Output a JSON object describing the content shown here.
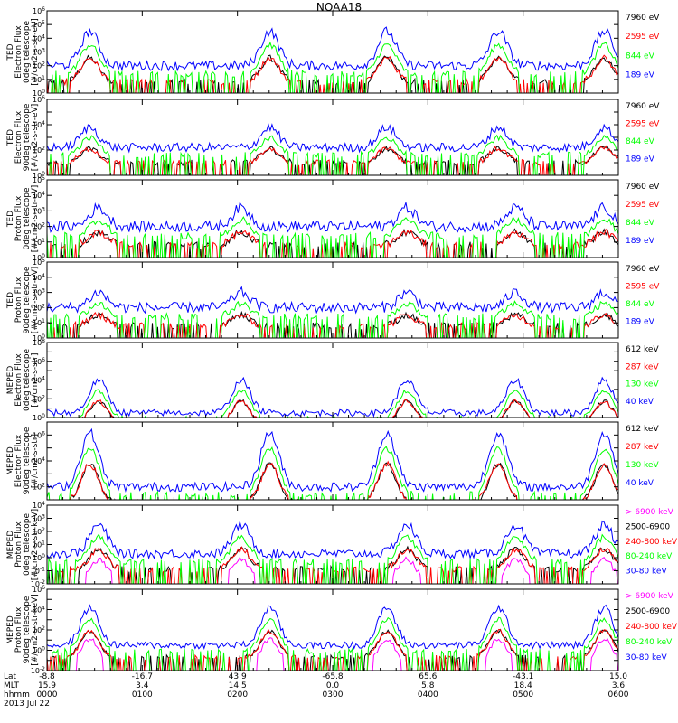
{
  "title": "NOAA18",
  "colors": {
    "black": "#000000",
    "red": "#ff0000",
    "green": "#00ff00",
    "blue": "#0000ff",
    "magenta": "#ff00ff"
  },
  "bottom_axis": {
    "rows": [
      {
        "label": "Lat",
        "values": [
          "-8.8",
          "-16.7",
          "43.9",
          "-65.8",
          "65.6",
          "-43.1",
          "15.0"
        ]
      },
      {
        "label": "MLT",
        "values": [
          "15.9",
          "3.4",
          "14.5",
          "0.0",
          "5.8",
          "18.4",
          "3.6"
        ]
      },
      {
        "label": "hhmm",
        "values": [
          "0000",
          "0100",
          "0200",
          "0300",
          "0400",
          "0500",
          "0600"
        ]
      }
    ],
    "date": "2013 Jul 22"
  },
  "chart_data": [
    {
      "type": "line",
      "instrument": "TED",
      "ylabel": [
        "TED",
        "Electron Flux",
        "0deg telescope",
        "[#/cm2-s-str-eV]"
      ],
      "y_scale": "log",
      "ylim": [
        1,
        1000000
      ],
      "ytick_labels": [
        "10^0",
        "10^1",
        "10^2",
        "10^3",
        "10^4",
        "10^5",
        "10^6"
      ],
      "series": [
        {
          "name": "7960 eV",
          "color": "#000000"
        },
        {
          "name": "2595 eV",
          "color": "#ff0000"
        },
        {
          "name": "844 eV",
          "color": "#00ff00"
        },
        {
          "name": "189 eV",
          "color": "#0000ff"
        }
      ],
      "legend": [
        {
          "text": "7960 eV",
          "color": "#000000"
        },
        {
          "text": "2595 eV",
          "color": "#ff0000"
        },
        {
          "text": "844 eV",
          "color": "#00ff00"
        },
        {
          "text": "189 eV",
          "color": "#0000ff"
        }
      ],
      "peaks": [
        0.075,
        0.39,
        0.595,
        0.79,
        0.975
      ],
      "base_blue": 2.0,
      "peak_blue": 4.5
    },
    {
      "type": "line",
      "instrument": "TED",
      "ylabel": [
        "TED",
        "Electron Flux",
        "90deg telescope",
        "[#/cm2-s-str-eV]"
      ],
      "y_scale": "log",
      "ylim": [
        1,
        1000000
      ],
      "ytick_labels": [
        "10^0",
        "",
        "10^2",
        "",
        "10^4",
        "",
        "10^6"
      ],
      "series": [
        {
          "name": "7960 eV",
          "color": "#000000"
        },
        {
          "name": "2595 eV",
          "color": "#ff0000"
        },
        {
          "name": "844 eV",
          "color": "#00ff00"
        },
        {
          "name": "189 eV",
          "color": "#0000ff"
        }
      ],
      "legend": [
        {
          "text": "7960 eV",
          "color": "#000000"
        },
        {
          "text": "2595 eV",
          "color": "#ff0000"
        },
        {
          "text": "844 eV",
          "color": "#00ff00"
        },
        {
          "text": "189 eV",
          "color": "#0000ff"
        }
      ],
      "peaks": [
        0.075,
        0.39,
        0.595,
        0.79,
        0.975
      ],
      "base_blue": 2.2,
      "peak_blue": 3.8
    },
    {
      "type": "line",
      "instrument": "TED",
      "ylabel": [
        "TED",
        "Proton Flux",
        "0deg telescope",
        "[#/cm2-s-str-eV]"
      ],
      "y_scale": "log",
      "ylim": [
        1,
        100000
      ],
      "ytick_labels": [
        "10^0",
        "10^1",
        "10^2",
        "10^3",
        "10^4",
        "10^5"
      ],
      "series": [
        {
          "name": "7960 eV",
          "color": "#000000"
        },
        {
          "name": "2595 eV",
          "color": "#ff0000"
        },
        {
          "name": "844 eV",
          "color": "#00ff00"
        },
        {
          "name": "189 eV",
          "color": "#0000ff"
        }
      ],
      "legend": [
        {
          "text": "7960 eV",
          "color": "#000000"
        },
        {
          "text": "2595 eV",
          "color": "#ff0000"
        },
        {
          "text": "844 eV",
          "color": "#00ff00"
        },
        {
          "text": "189 eV",
          "color": "#0000ff"
        }
      ],
      "peaks": [
        0.09,
        0.34,
        0.63,
        0.82,
        0.975
      ],
      "base_blue": 2.0,
      "peak_blue": 3.2
    },
    {
      "type": "line",
      "instrument": "TED",
      "ylabel": [
        "TED",
        "Proton Flux",
        "90deg telescope",
        "[#/cm2-s-str-eV]"
      ],
      "y_scale": "log",
      "ylim": [
        1,
        100000
      ],
      "ytick_labels": [
        "10^0",
        "10^1",
        "10^2",
        "10^3",
        "10^4",
        "10^5"
      ],
      "series": [
        {
          "name": "7960 eV",
          "color": "#000000"
        },
        {
          "name": "2595 eV",
          "color": "#ff0000"
        },
        {
          "name": "844 eV",
          "color": "#00ff00"
        },
        {
          "name": "189 eV",
          "color": "#0000ff"
        }
      ],
      "legend": [
        {
          "text": "7960 eV",
          "color": "#000000"
        },
        {
          "text": "2595 eV",
          "color": "#ff0000"
        },
        {
          "text": "844 eV",
          "color": "#00ff00"
        },
        {
          "text": "189 eV",
          "color": "#0000ff"
        }
      ],
      "peaks": [
        0.09,
        0.34,
        0.63,
        0.82,
        0.975
      ],
      "base_blue": 2.0,
      "peak_blue": 3.0
    },
    {
      "type": "line",
      "instrument": "MEPED",
      "ylabel": [
        "MEPED",
        "Electron Flux",
        "0deg telescope",
        "[#/cm2-s-str]"
      ],
      "y_scale": "log",
      "ylim": [
        1,
        100000000
      ],
      "ytick_labels": [
        "10^0",
        "",
        "10^2",
        "",
        "10^4",
        "",
        "10^6",
        "",
        "10^8"
      ],
      "series": [
        {
          "name": "612 keV",
          "color": "#000000"
        },
        {
          "name": "287 keV",
          "color": "#ff0000"
        },
        {
          "name": "130 keV",
          "color": "#00ff00"
        },
        {
          "name": "40 keV",
          "color": "#0000ff"
        }
      ],
      "legend": [
        {
          "text": "612 keV",
          "color": "#000000"
        },
        {
          "text": "287 keV",
          "color": "#ff0000"
        },
        {
          "text": "130 keV",
          "color": "#00ff00"
        },
        {
          "text": "40 keV",
          "color": "#0000ff"
        }
      ],
      "peaks": [
        0.09,
        0.34,
        0.63,
        0.82,
        0.975
      ],
      "base_blue": 0.5,
      "peak_blue": 4.0
    },
    {
      "type": "line",
      "instrument": "MEPED",
      "ylabel": [
        "MEPED",
        "Electron Flux",
        "90deg telescope",
        "[#/cm2-s-str]"
      ],
      "y_scale": "log",
      "ylim": [
        10,
        10000000
      ],
      "ytick_labels": [
        "",
        "10^2",
        "",
        "10^4",
        "",
        "10^6",
        ""
      ],
      "series": [
        {
          "name": "612 keV",
          "color": "#000000"
        },
        {
          "name": "287 keV",
          "color": "#ff0000"
        },
        {
          "name": "130 keV",
          "color": "#00ff00"
        },
        {
          "name": "40 keV",
          "color": "#0000ff"
        }
      ],
      "legend": [
        {
          "text": "612 keV",
          "color": "#000000"
        },
        {
          "text": "287 keV",
          "color": "#ff0000"
        },
        {
          "text": "130 keV",
          "color": "#00ff00"
        },
        {
          "text": "40 keV",
          "color": "#0000ff"
        }
      ],
      "peaks": [
        0.075,
        0.39,
        0.595,
        0.79,
        0.975
      ],
      "base_blue": 2.0,
      "peak_blue": 6.2
    },
    {
      "type": "line",
      "instrument": "MEPED",
      "ylabel": [
        "MEPED",
        "Proton Flux",
        "0deg telescope",
        "[#/cm2-s-str-keV]"
      ],
      "y_scale": "log",
      "ylim": [
        0.01,
        10000
      ],
      "ytick_labels": [
        "10^-2",
        "10^-1",
        "10^0",
        "10^1",
        "10^2",
        "10^3",
        "10^4"
      ],
      "series": [
        {
          "name": "> 6900 keV",
          "color": "#ff00ff"
        },
        {
          "name": "2500-6900",
          "color": "#000000"
        },
        {
          "name": "240-800 keV",
          "color": "#ff0000"
        },
        {
          "name": "80-240 keV",
          "color": "#00ff00"
        },
        {
          "name": "30-80 keV",
          "color": "#0000ff"
        }
      ],
      "legend": [
        {
          "text": "> 6900 keV",
          "color": "#ff00ff"
        },
        {
          "text": "2500-6900",
          "color": "#000000"
        },
        {
          "text": "240-800 keV",
          "color": "#ff0000"
        },
        {
          "text": "80-240 keV",
          "color": "#00ff00"
        },
        {
          "text": "30-80 keV",
          "color": "#0000ff"
        }
      ],
      "peaks": [
        0.09,
        0.34,
        0.63,
        0.82,
        0.975
      ],
      "base_blue": 0.3,
      "peak_blue": 2.5
    },
    {
      "type": "line",
      "instrument": "MEPED",
      "ylabel": [
        "MEPED",
        "Proton Flux",
        "90deg telescope",
        "[#/cm2-s-str-keV]"
      ],
      "y_scale": "log",
      "ylim": [
        0.01,
        1000000
      ],
      "ytick_labels": [
        "10^-2",
        "",
        "10^0",
        "",
        "10^2",
        "",
        "10^4",
        "",
        "10^6"
      ],
      "series": [
        {
          "name": "> 6900 keV",
          "color": "#ff00ff"
        },
        {
          "name": "2500-6900",
          "color": "#000000"
        },
        {
          "name": "240-800 keV",
          "color": "#ff0000"
        },
        {
          "name": "80-240 keV",
          "color": "#00ff00"
        },
        {
          "name": "30-80 keV",
          "color": "#0000ff"
        }
      ],
      "legend": [
        {
          "text": "> 6900 keV",
          "color": "#ff00ff"
        },
        {
          "text": "2500-6900",
          "color": "#000000"
        },
        {
          "text": "240-800 keV",
          "color": "#ff0000"
        },
        {
          "text": "80-240 keV",
          "color": "#00ff00"
        },
        {
          "text": "30-80 keV",
          "color": "#0000ff"
        }
      ],
      "peaks": [
        0.075,
        0.39,
        0.595,
        0.79,
        0.975
      ],
      "base_blue": 0.5,
      "peak_blue": 4.2
    }
  ]
}
